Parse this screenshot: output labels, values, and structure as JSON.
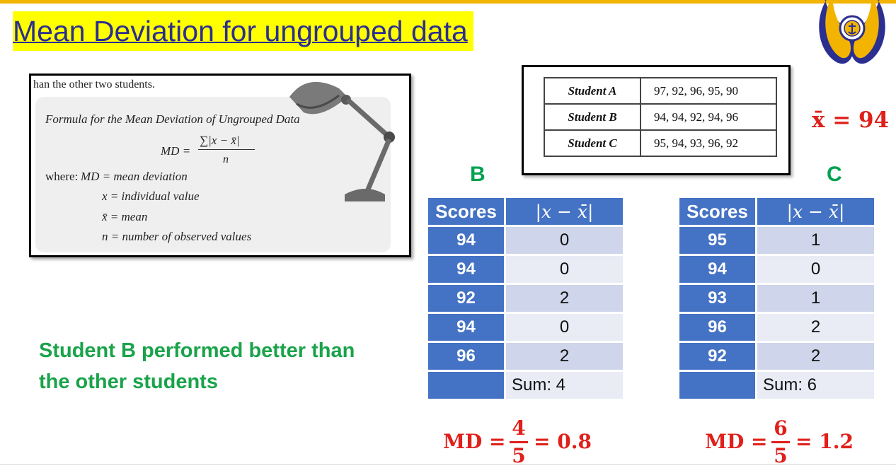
{
  "title": "Mean Deviation for ungrouped data",
  "formula_image": {
    "top_text": "han the other two students.",
    "heading": "Formula for the Mean Deviation of Ungrouped Data",
    "formula_lhs": "MD =",
    "formula_numerator": "∑|x − x̄|",
    "formula_denominator": "n",
    "where_label": "where:",
    "definitions": [
      "MD = mean deviation",
      "x = individual value",
      "x̄ = mean",
      "n = number of observed values"
    ]
  },
  "students_table": [
    {
      "name": "Student A",
      "scores": "97, 92, 96, 95, 90"
    },
    {
      "name": "Student B",
      "scores": "94, 94, 92, 94, 96"
    },
    {
      "name": "Student C",
      "scores": "95, 94, 93, 96, 92"
    }
  ],
  "mean_label": "x̄ = 94",
  "table_b": {
    "label": "B",
    "col1": "Scores",
    "col2": "|x − x̄|",
    "rows": [
      {
        "score": "94",
        "dev": "0"
      },
      {
        "score": "94",
        "dev": "0"
      },
      {
        "score": "92",
        "dev": "2"
      },
      {
        "score": "94",
        "dev": "0"
      },
      {
        "score": "96",
        "dev": "2"
      }
    ],
    "sum": "Sum: 4",
    "md_lhs": "MD =",
    "md_num": "4",
    "md_den": "5",
    "md_rhs": "= 0.8"
  },
  "table_c": {
    "label": "C",
    "col1": "Scores",
    "col2": "|x − x̄|",
    "rows": [
      {
        "score": "95",
        "dev": "1"
      },
      {
        "score": "94",
        "dev": "0"
      },
      {
        "score": "93",
        "dev": "1"
      },
      {
        "score": "96",
        "dev": "2"
      },
      {
        "score": "92",
        "dev": "2"
      }
    ],
    "sum": "Sum: 6",
    "md_lhs": "MD =",
    "md_num": "6",
    "md_den": "5",
    "md_rhs": "= 1.2"
  },
  "conclusion": "Student B performed better than the other students",
  "colors": {
    "accent_bar": "#f2b400",
    "title_highlight": "#ffff00",
    "title_text": "#2b2f8f",
    "table_header": "#4472c4",
    "row_dark": "#cfd5ea",
    "row_light": "#e9ebf5",
    "label_green": "#00a050",
    "formula_red": "#e0201b"
  }
}
